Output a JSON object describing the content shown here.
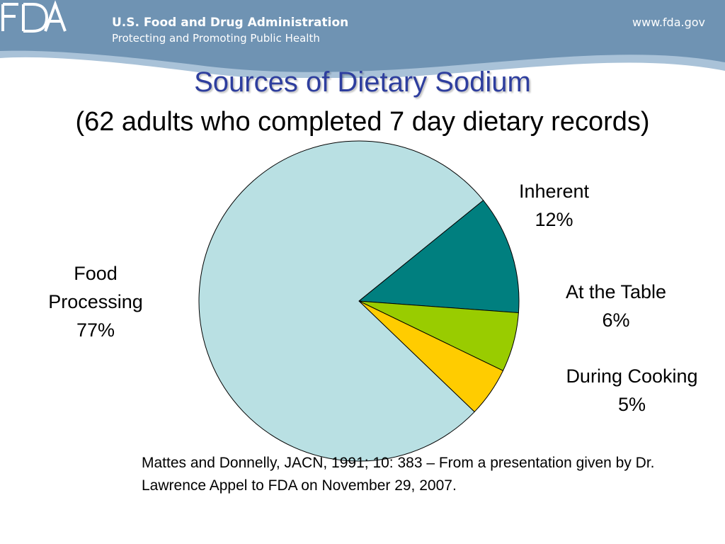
{
  "header": {
    "agency_name": "U.S. Food and Drug Administration",
    "tagline": "Protecting and Promoting Public Health",
    "url": "www.fda.gov",
    "logo_text": "FDA",
    "banner_color": "#6f93b3",
    "banner_light_color": "#a9c2d8"
  },
  "slide": {
    "title": "Sources of Dietary Sodium",
    "subtitle": "(62 adults who completed 7 day dietary records)",
    "citation": "Mattes and Donnelly, JACN, 1991; 10: 383 – From a presentation given by Dr. Lawrence Appel to FDA on November 29, 2007."
  },
  "chart_data": {
    "type": "pie",
    "title": "Sources of Dietary Sodium",
    "subtitle": "(62 adults who completed 7 day dietary records)",
    "slices": [
      {
        "name": "Inherent",
        "line1": "Inherent",
        "line2": "",
        "value": 12,
        "label": "12%",
        "color": "#007f7f"
      },
      {
        "name": "At the Table",
        "line1": "At the Table",
        "line2": "",
        "value": 6,
        "label": "6%",
        "color": "#99cc00"
      },
      {
        "name": "During Cooking",
        "line1": "During Cooking",
        "line2": "",
        "value": 5,
        "label": "5%",
        "color": "#ffcc00"
      },
      {
        "name": "Food Processing",
        "line1": "Food",
        "line2": "Processing",
        "value": 77,
        "label": "77%",
        "color": "#b9e0e3"
      }
    ]
  }
}
